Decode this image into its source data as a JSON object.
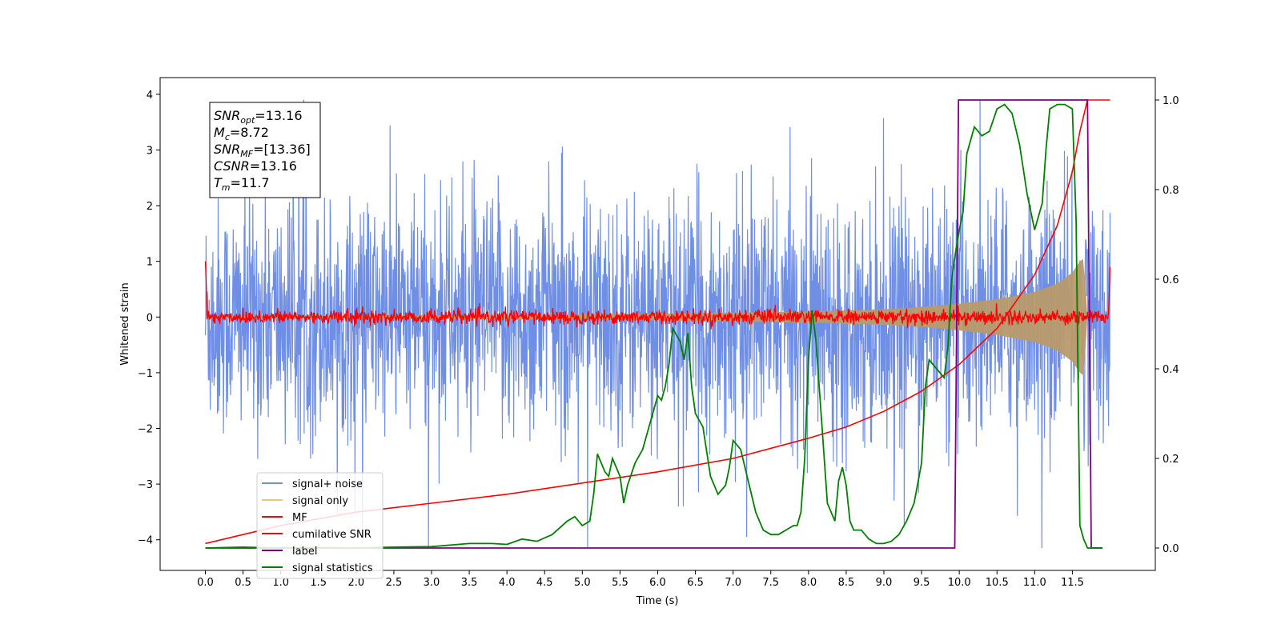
{
  "chart_data": {
    "type": "line",
    "title": "",
    "xlabel": "Time (s)",
    "ylabel": "Whitened strain",
    "xlim": [
      -0.6,
      12.6
    ],
    "ylim": [
      -4.55,
      4.3
    ],
    "y2lim": [
      -0.05,
      1.05
    ],
    "x_ticks": [
      0,
      0.5,
      1,
      1.5,
      2,
      2.5,
      3,
      3.5,
      4,
      4.5,
      5,
      5.5,
      6,
      6.5,
      7,
      7.5,
      8,
      8.5,
      9,
      9.5,
      10,
      10.5,
      11,
      11.5
    ],
    "x_tick_labels": [
      "0.0",
      "0.5",
      "1.0",
      "1.5",
      "2.0",
      "2.5",
      "3.0",
      "3.5",
      "4.0",
      "4.5",
      "5.0",
      "5.5",
      "6.0",
      "6.5",
      "7.0",
      "7.5",
      "8.0",
      "8.5",
      "9.0",
      "9.5",
      "10.0",
      "10.5",
      "11.0",
      "11.5"
    ],
    "y_ticks": [
      -4,
      -3,
      -2,
      -1,
      0,
      1,
      2,
      3,
      4
    ],
    "y_tick_labels": [
      "−4",
      "−3",
      "−2",
      "−1",
      "0",
      "1",
      "2",
      "3",
      "4"
    ],
    "y2_ticks": [
      0,
      0.2,
      0.4,
      0.6,
      0.8,
      1.0
    ],
    "y2_tick_labels": [
      "0.0",
      "0.2",
      "0.4",
      "0.6",
      "0.8",
      "1.0"
    ],
    "grid": false,
    "legend_position": "lower-left",
    "annotation": {
      "lines": [
        {
          "sym": "SNR",
          "sub": "opt",
          "val": "=13.16"
        },
        {
          "sym": "M",
          "sub": "c",
          "val": "=8.72"
        },
        {
          "sym": "SNR",
          "sub": "MF",
          "val": "=[13.36]"
        },
        {
          "sym": "CSNR",
          "sub": "",
          "val": "=13.16"
        },
        {
          "sym": "T",
          "sub": "m",
          "val": "=11.7"
        }
      ]
    },
    "series": [
      {
        "name": "signal+ noise",
        "color": "#6f8ee6",
        "axis": "left",
        "description_range": [
          -4.15,
          3.9
        ],
        "x_range": [
          0,
          12
        ]
      },
      {
        "name": "signal only",
        "color": "#f5c46e",
        "axis": "left",
        "envelope": {
          "x": [
            0,
            4,
            6,
            8,
            9,
            9.5,
            10,
            10.5,
            11,
            11.3,
            11.5,
            11.6,
            11.65,
            11.7
          ],
          "amplitude": [
            0.02,
            0.04,
            0.06,
            0.1,
            0.14,
            0.18,
            0.24,
            0.32,
            0.45,
            0.6,
            0.8,
            1.0,
            1.05,
            0.0
          ]
        }
      },
      {
        "name": "MF",
        "color": "#ff0000",
        "axis": "left",
        "baseline": 0.0,
        "x_range": [
          0,
          12
        ]
      },
      {
        "name": "cumilative SNR",
        "color": "#ff0000",
        "axis": "right",
        "x": [
          0,
          0.05,
          0.5,
          1,
          2,
          3,
          4,
          5,
          6,
          7,
          8,
          8.5,
          9,
          9.5,
          10,
          10.5,
          11,
          11.3,
          11.5,
          11.6,
          11.7,
          12
        ],
        "values": [
          0.01,
          0.012,
          0.03,
          0.05,
          0.08,
          0.1,
          0.12,
          0.145,
          0.17,
          0.2,
          0.245,
          0.27,
          0.305,
          0.35,
          0.41,
          0.49,
          0.61,
          0.72,
          0.84,
          0.93,
          1.0,
          1.0
        ]
      },
      {
        "name": "label",
        "color": "#800080",
        "axis": "right",
        "x": [
          0,
          9.94,
          9.99,
          11.7,
          11.75,
          11.9
        ],
        "values": [
          0,
          0,
          1,
          1,
          0,
          0
        ]
      },
      {
        "name": "signal statistics",
        "color": "#008000",
        "axis": "right",
        "x": [
          0,
          0.5,
          1,
          1.5,
          2,
          2.5,
          3,
          3.5,
          3.8,
          4,
          4.2,
          4.4,
          4.6,
          4.8,
          4.9,
          5.0,
          5.1,
          5.15,
          5.2,
          5.3,
          5.35,
          5.4,
          5.5,
          5.55,
          5.6,
          5.7,
          5.8,
          5.9,
          6.0,
          6.05,
          6.1,
          6.15,
          6.2,
          6.3,
          6.35,
          6.4,
          6.45,
          6.5,
          6.6,
          6.7,
          6.8,
          6.9,
          6.95,
          7.0,
          7.1,
          7.2,
          7.3,
          7.4,
          7.5,
          7.6,
          7.7,
          7.8,
          7.85,
          7.9,
          7.95,
          8.0,
          8.05,
          8.1,
          8.15,
          8.2,
          8.25,
          8.3,
          8.35,
          8.4,
          8.45,
          8.5,
          8.55,
          8.6,
          8.7,
          8.8,
          8.9,
          9.0,
          9.1,
          9.2,
          9.3,
          9.4,
          9.5,
          9.55,
          9.6,
          9.7,
          9.8,
          9.85,
          9.9,
          9.95,
          10.0,
          10.05,
          10.1,
          10.2,
          10.3,
          10.4,
          10.5,
          10.6,
          10.7,
          10.8,
          10.9,
          11.0,
          11.1,
          11.15,
          11.2,
          11.3,
          11.4,
          11.5,
          11.55,
          11.6,
          11.65,
          11.7,
          11.75,
          11.8,
          11.9
        ],
        "values": [
          0.0,
          0.002,
          0.0,
          0.001,
          0.0,
          0.002,
          0.003,
          0.01,
          0.01,
          0.008,
          0.02,
          0.015,
          0.03,
          0.06,
          0.07,
          0.05,
          0.06,
          0.12,
          0.21,
          0.17,
          0.16,
          0.2,
          0.16,
          0.1,
          0.14,
          0.19,
          0.22,
          0.28,
          0.34,
          0.33,
          0.36,
          0.41,
          0.49,
          0.46,
          0.42,
          0.48,
          0.36,
          0.3,
          0.27,
          0.16,
          0.12,
          0.14,
          0.18,
          0.24,
          0.22,
          0.15,
          0.08,
          0.04,
          0.03,
          0.03,
          0.04,
          0.05,
          0.05,
          0.08,
          0.2,
          0.42,
          0.53,
          0.46,
          0.34,
          0.22,
          0.1,
          0.08,
          0.06,
          0.15,
          0.18,
          0.14,
          0.06,
          0.04,
          0.04,
          0.02,
          0.01,
          0.01,
          0.015,
          0.03,
          0.06,
          0.1,
          0.19,
          0.36,
          0.42,
          0.4,
          0.38,
          0.45,
          0.6,
          0.66,
          0.71,
          0.75,
          0.88,
          0.94,
          0.92,
          0.93,
          0.98,
          0.99,
          0.97,
          0.9,
          0.79,
          0.71,
          0.77,
          0.89,
          0.98,
          0.99,
          0.99,
          0.98,
          0.73,
          0.05,
          0.02,
          0.0,
          0.0,
          0.0,
          0.0
        ]
      }
    ]
  }
}
